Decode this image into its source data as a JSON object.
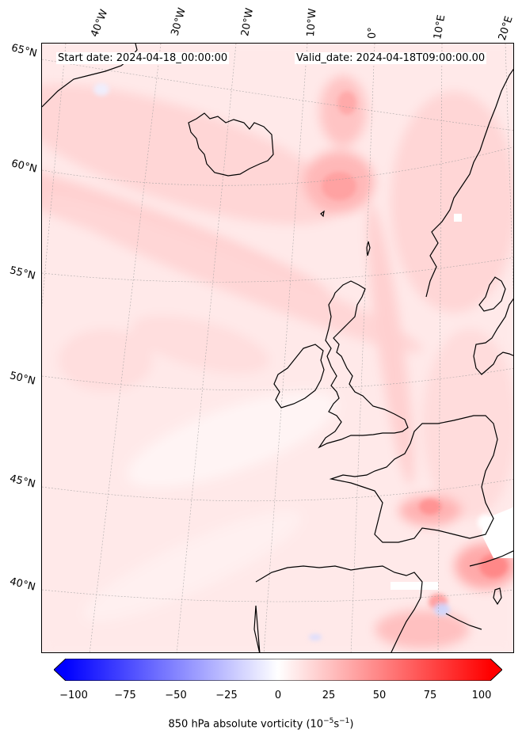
{
  "header": {
    "start_date": "Start date: 2024-04-18_00:00:00",
    "valid_date": "Valid_date: 2024-04-18T09:00:00.00"
  },
  "longitude_labels": [
    "40°W",
    "30°W",
    "20°W",
    "10°W",
    "0°",
    "10°E",
    "20°E"
  ],
  "latitude_labels": [
    "65°N",
    "60°N",
    "55°N",
    "50°N",
    "45°N",
    "40°N"
  ],
  "colorbar": {
    "min": -100,
    "max": 100,
    "ticks": [
      "−100",
      "−75",
      "−50",
      "−25",
      "0",
      "25",
      "50",
      "75",
      "100"
    ],
    "label_prefix": "850 hPa absolute vorticity (10",
    "label_exp1": "−5",
    "label_mid": "s",
    "label_exp2": "−1",
    "label_suffix": ")",
    "colors": {
      "negative": "#0000ff",
      "zero": "#ffffff",
      "positive": "#ff0000"
    }
  }
}
